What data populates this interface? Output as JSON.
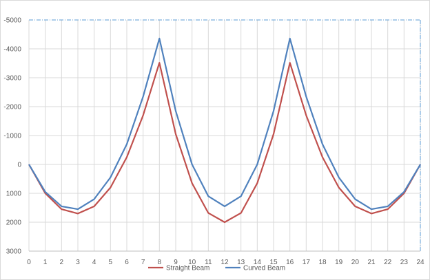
{
  "chart_data": {
    "type": "line",
    "title": "",
    "xlabel": "",
    "ylabel": "",
    "y_inverted": true,
    "xlim": [
      0,
      24
    ],
    "ylim": [
      -5000,
      3000
    ],
    "grid": true,
    "legend_position": "bottom",
    "x": [
      0,
      1,
      2,
      3,
      4,
      5,
      6,
      7,
      8,
      9,
      10,
      11,
      12,
      13,
      14,
      15,
      16,
      17,
      18,
      19,
      20,
      21,
      22,
      23,
      24
    ],
    "x_ticks": [
      "0",
      "1",
      "2",
      "3",
      "4",
      "5",
      "6",
      "7",
      "8",
      "9",
      "10",
      "11",
      "12",
      "13",
      "14",
      "15",
      "16",
      "17",
      "18",
      "19",
      "20",
      "21",
      "22",
      "23",
      "24"
    ],
    "y_ticks": [
      {
        "value": -5000,
        "label": "-5000"
      },
      {
        "value": -4000,
        "label": "-4000"
      },
      {
        "value": -3000,
        "label": "-3000"
      },
      {
        "value": -2000,
        "label": "-2000"
      },
      {
        "value": -1000,
        "label": "-1000"
      },
      {
        "value": 0,
        "label": "0"
      },
      {
        "value": 1000,
        "label": "1000"
      },
      {
        "value": 2000,
        "label": "2000"
      },
      {
        "value": 3000,
        "label": "3000"
      }
    ],
    "series": [
      {
        "name": "Straight Beam",
        "color": "#c0504d",
        "values": [
          0,
          1000,
          1550,
          1700,
          1450,
          800,
          -250,
          -1700,
          -3520,
          -1050,
          650,
          1680,
          2000,
          1680,
          650,
          -1050,
          -3520,
          -1700,
          -250,
          800,
          1450,
          1700,
          1550,
          1000,
          0
        ]
      },
      {
        "name": "Curved Beam",
        "color": "#4f81bd",
        "values": [
          0,
          950,
          1450,
          1550,
          1200,
          450,
          -700,
          -2350,
          -4360,
          -1850,
          0,
          1100,
          1450,
          1100,
          0,
          -1850,
          -4360,
          -2350,
          -700,
          450,
          1200,
          1550,
          1450,
          950,
          0
        ]
      }
    ]
  }
}
